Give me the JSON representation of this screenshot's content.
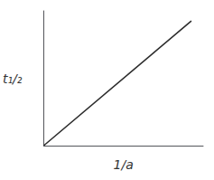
{
  "chart_data": {
    "type": "line",
    "x": [
      0,
      1
    ],
    "values": [
      0,
      1
    ],
    "color": "#2b2b2b",
    "xlabel": "1/a",
    "ylabel": "t₁/₂",
    "xlim": [
      0,
      1.08
    ],
    "ylim": [
      0,
      1.08
    ],
    "tick_labels": false,
    "grid": false
  }
}
